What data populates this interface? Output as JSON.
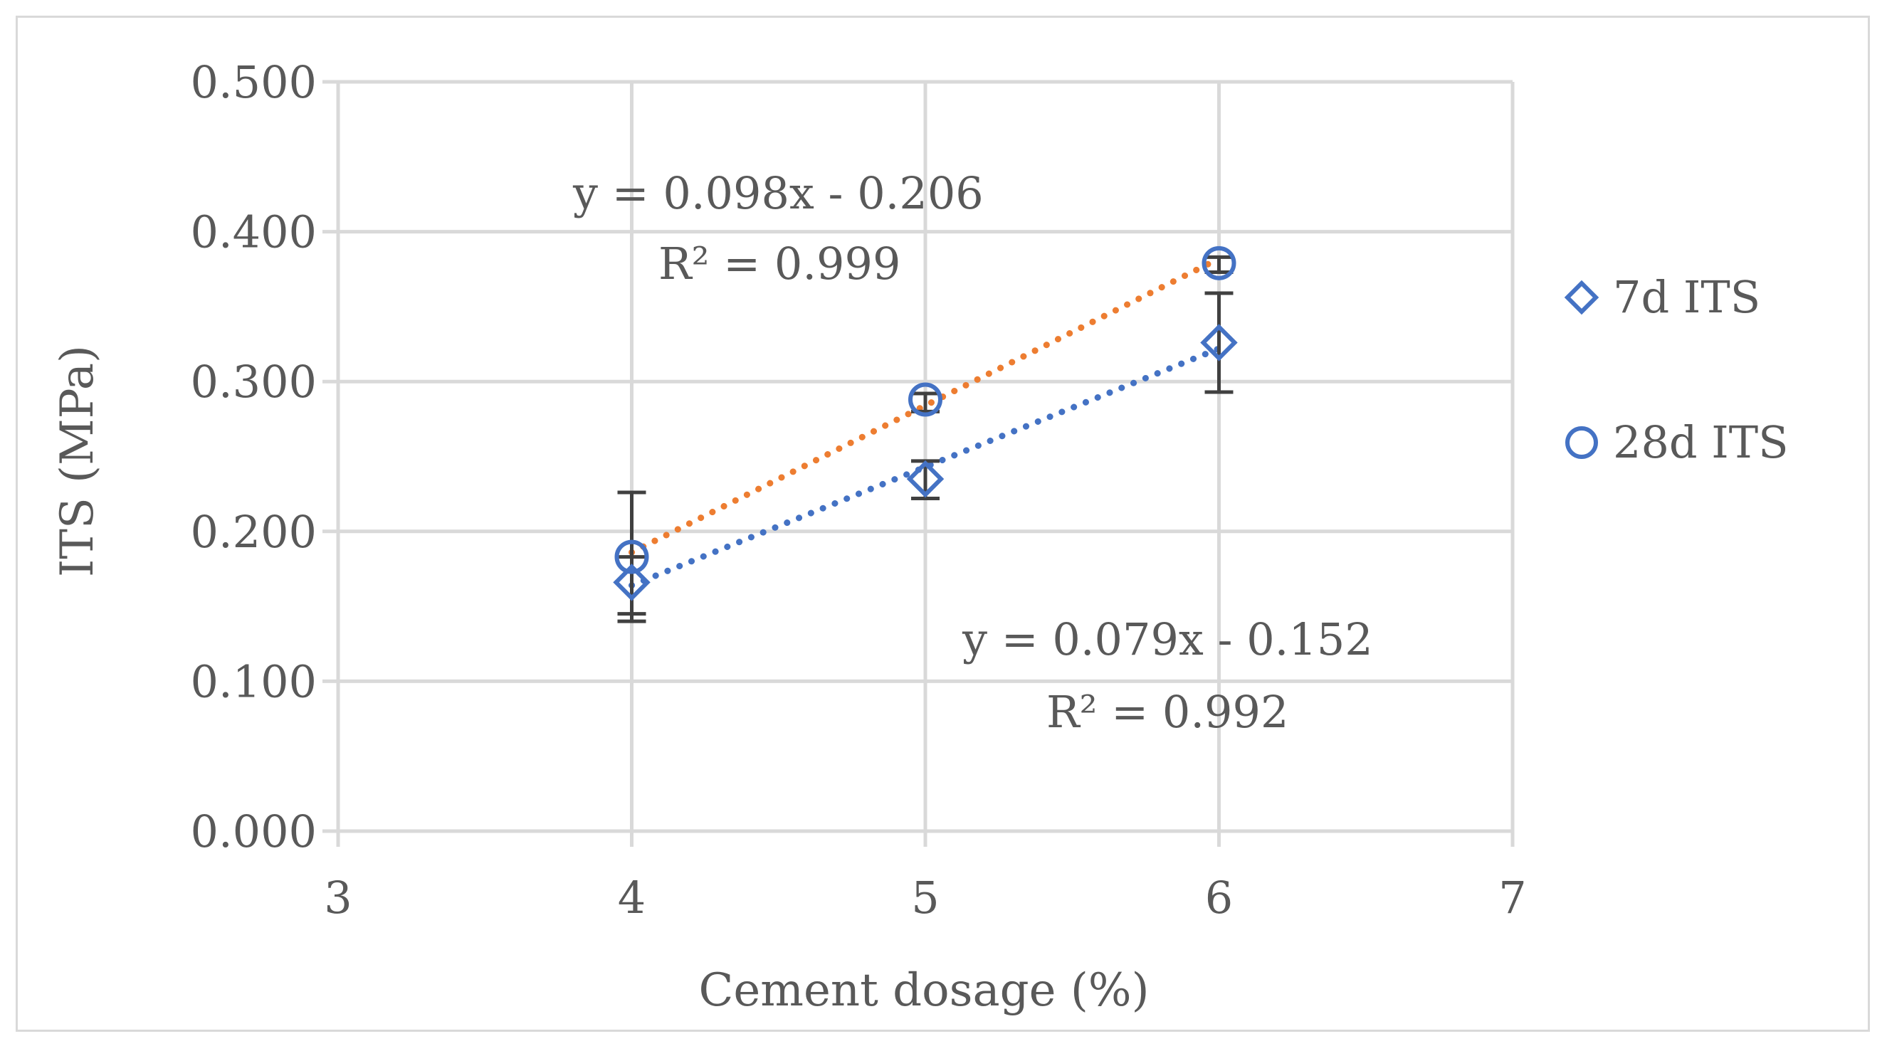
{
  "chart_data": {
    "type": "scatter",
    "xlabel": "Cement dosage (%)",
    "ylabel": "ITS (MPa)",
    "xlim": [
      3,
      7
    ],
    "ylim": [
      0,
      0.5
    ],
    "xticks": [
      "3",
      "4",
      "5",
      "6",
      "7"
    ],
    "yticks": [
      "0.000",
      "0.100",
      "0.200",
      "0.300",
      "0.400",
      "0.500"
    ],
    "grid": true,
    "legend_position": "right",
    "colors": {
      "marker": "#4472c4",
      "trend_7d": "#4472c4",
      "trend_28d": "#ed7d31",
      "error_bar": "#404040",
      "grid": "#d9d9d9"
    },
    "series": [
      {
        "name": "7d ITS",
        "marker": "diamond",
        "x": [
          4,
          5,
          6
        ],
        "y": [
          0.166,
          0.235,
          0.326
        ],
        "err_low": [
          0.14,
          0.222,
          0.293
        ],
        "err_high": [
          0.226,
          0.247,
          0.359
        ],
        "trendline": {
          "slope": 0.079,
          "intercept": -0.152,
          "equation": "y = 0.079x - 0.152",
          "r2": "R² = 0.992"
        }
      },
      {
        "name": "28d ITS",
        "marker": "circle",
        "x": [
          4,
          5,
          6
        ],
        "y": [
          0.183,
          0.288,
          0.379
        ],
        "err_low": [
          0.145,
          0.28,
          0.373
        ],
        "err_high": [
          0.183,
          0.292,
          0.383
        ],
        "trendline": {
          "slope": 0.098,
          "intercept": -0.206,
          "equation": "y = 0.098x - 0.206",
          "r2": "R² = 0.999"
        }
      }
    ]
  }
}
